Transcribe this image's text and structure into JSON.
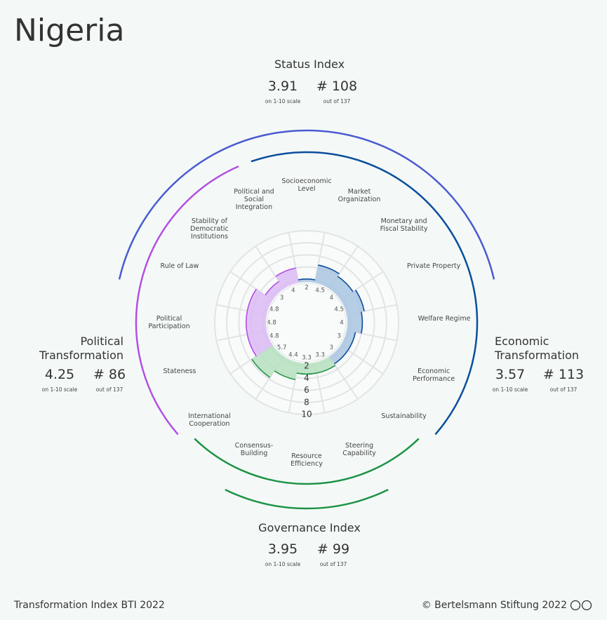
{
  "title": "Nigeria",
  "status_index": {
    "name": "Status Index",
    "score": 3.91,
    "scale_note": "on 1-10 scale",
    "rank": "# 108",
    "rank_note": "out of 137"
  },
  "chart_data": {
    "type": "radar",
    "rlim": [
      0,
      10
    ],
    "rticks": [
      2,
      4,
      6,
      8,
      10
    ],
    "series": [
      {
        "name": "Economic Transformation",
        "color": "#0b4f9c",
        "fill": "#a9c4e0",
        "score": 3.57,
        "scale_note": "on 1-10 scale",
        "rank": "# 113",
        "rank_note": "out of 137",
        "categories": [
          "Socioeconomic Level",
          "Market Organization",
          "Monetary and Fiscal Stability",
          "Private Property",
          "Welfare Regime",
          "Economic Performance",
          "Sustainability"
        ],
        "values": [
          2.0,
          4.5,
          4.0,
          4.5,
          4.0,
          3.0,
          3.0
        ]
      },
      {
        "name": "Governance Index",
        "color": "#1f9345",
        "fill": "#b5dfbd",
        "score": 3.95,
        "scale_note": "on 1-10 scale",
        "rank": "# 99",
        "rank_note": "out of 137",
        "categories": [
          "Steering Capability",
          "Resource Efficiency",
          "Consensus-Building",
          "International Cooperation"
        ],
        "values": [
          3.3,
          3.3,
          4.4,
          5.7
        ]
      },
      {
        "name": "Political Transformation",
        "color": "#b44fe3",
        "fill": "#dcbaf4",
        "score": 4.25,
        "scale_note": "on 1-10 scale",
        "rank": "# 86",
        "rank_note": "out of 137",
        "categories": [
          "Stateness",
          "Political Participation",
          "Rule of Law",
          "Stability of Democratic Institutions",
          "Political and Social Integration"
        ],
        "values": [
          4.8,
          4.8,
          4.8,
          3.0,
          4.0
        ]
      }
    ]
  },
  "footer": {
    "left": "Transformation Index BTI 2022",
    "right": "© Bertelsmann Stiftung 2022"
  }
}
